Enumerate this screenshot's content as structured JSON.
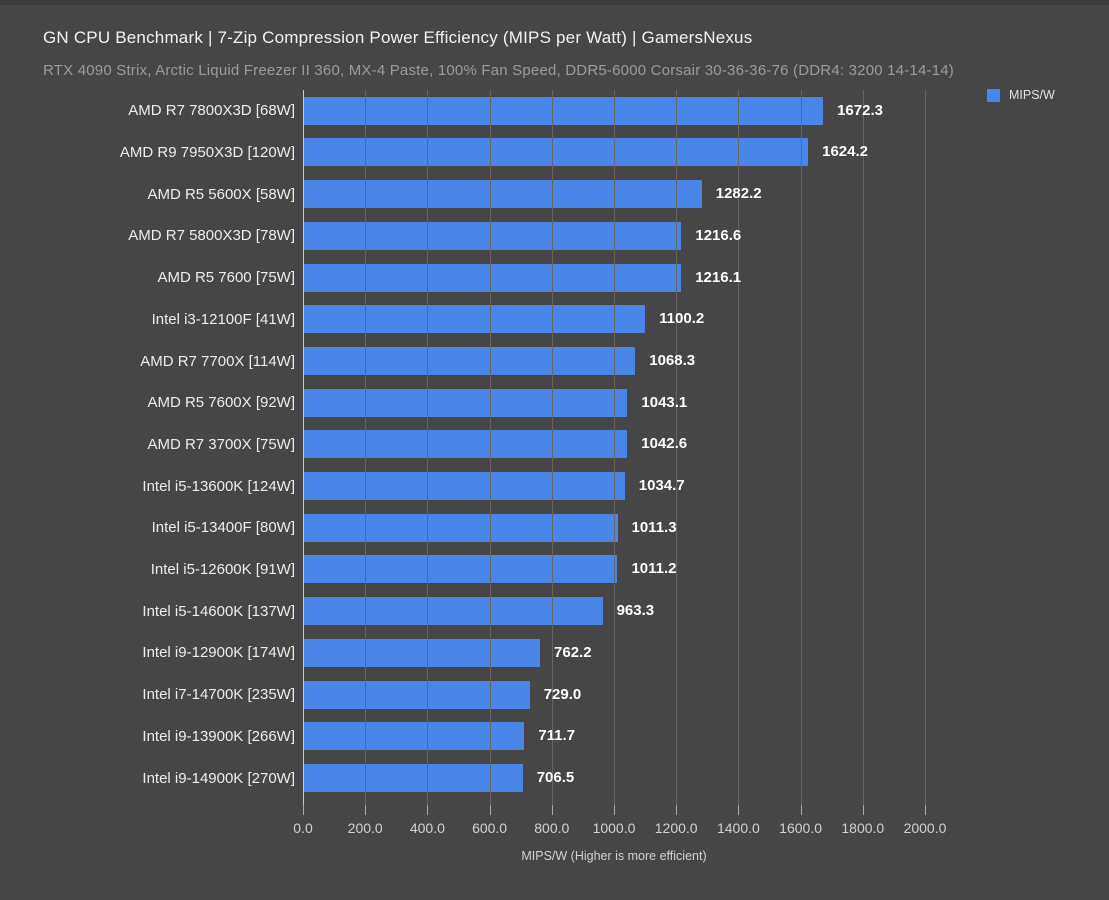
{
  "header": {
    "title": "GN CPU Benchmark | 7-Zip Compression Power Efficiency (MIPS per Watt) | GamersNexus",
    "subtitle": "RTX 4090 Strix, Arctic Liquid Freezer II 360, MX-4 Paste, 100% Fan Speed, DDR5-6000 Corsair 30-36-36-76 (DDR4: 3200 14-14-14)"
  },
  "legend": {
    "label": "MIPS/W",
    "swatch_color": "#4a86e8"
  },
  "chart_data": {
    "type": "bar",
    "orientation": "horizontal",
    "title": "GN CPU Benchmark | 7-Zip Compression Power Efficiency (MIPS per Watt) | GamersNexus",
    "subtitle": "RTX 4090 Strix, Arctic Liquid Freezer II 360, MX-4 Paste, 100% Fan Speed, DDR5-6000 Corsair 30-36-36-76 (DDR4: 3200 14-14-14)",
    "legend_entries": [
      "MIPS/W"
    ],
    "legend_position": "top-right",
    "xlabel": "MIPS/W (Higher is more efficient)",
    "ylabel": "",
    "xlim": [
      0,
      2000
    ],
    "grid": true,
    "tick_labels": [
      "0.0",
      "200.0",
      "400.0",
      "600.0",
      "800.0",
      "1000.0",
      "1200.0",
      "1400.0",
      "1600.0",
      "1800.0",
      "2000.0"
    ],
    "tick_values": [
      0,
      200,
      400,
      600,
      800,
      1000,
      1200,
      1400,
      1600,
      1800,
      2000
    ],
    "bar_color": "#4a86e8",
    "background_color": "#464646",
    "categories": [
      "AMD R7 7800X3D [68W]",
      "AMD R9 7950X3D [120W]",
      "AMD R5 5600X [58W]",
      "AMD R7 5800X3D [78W]",
      "AMD R5 7600 [75W]",
      "Intel i3-12100F [41W]",
      "AMD R7 7700X [114W]",
      "AMD R5 7600X [92W]",
      "AMD R7 3700X [75W]",
      "Intel i5-13600K [124W]",
      "Intel i5-13400F [80W]",
      "Intel i5-12600K [91W]",
      "Intel i5-14600K [137W]",
      "Intel i9-12900K [174W]",
      "Intel i7-14700K [235W]",
      "Intel i9-13900K [266W]",
      "Intel i9-14900K [270W]"
    ],
    "values": [
      1672.3,
      1624.2,
      1282.2,
      1216.6,
      1216.1,
      1100.2,
      1068.3,
      1043.1,
      1042.6,
      1034.7,
      1011.3,
      1011.2,
      963.3,
      762.2,
      729.0,
      711.7,
      706.5
    ]
  }
}
